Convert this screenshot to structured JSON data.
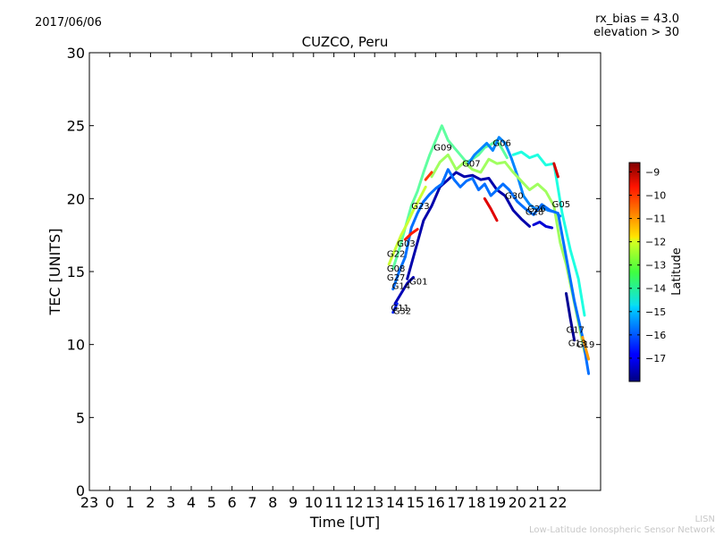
{
  "date_label": "2017/06/06",
  "rx_bias_label": "rx_bias = 43.0",
  "elevation_label": "elevation > 30",
  "credit_line1": "LISN",
  "credit_line2": "Low-Latitude Ionospheric Sensor Network",
  "chart_data": {
    "type": "line",
    "title": "CUZCO, Peru",
    "xlabel": "Time [UT]",
    "ylabel": "TEC [UNITS]",
    "ylim": [
      0,
      30
    ],
    "yticks": [
      "0",
      "5",
      "10",
      "15",
      "20",
      "25",
      "30"
    ],
    "xticks": [
      "23",
      "0",
      "1",
      "2",
      "3",
      "4",
      "5",
      "6",
      "7",
      "8",
      "9",
      "10",
      "11",
      "12",
      "13",
      "14",
      "15",
      "16",
      "17",
      "18",
      "19",
      "20",
      "21",
      "22"
    ],
    "colorbar": {
      "label": "Latitude",
      "range": [
        -18,
        -8.6
      ],
      "ticks": [
        "−9",
        "−10",
        "−11",
        "−12",
        "−13",
        "−14",
        "−15",
        "−16",
        "−17"
      ],
      "tick_values": [
        -9,
        -10,
        -11,
        -12,
        -13,
        -14,
        -15,
        -16,
        -17
      ]
    },
    "series": [
      {
        "name": "G09",
        "lat": -13.6,
        "x": [
          13.9,
          14.2,
          14.5,
          14.8,
          15.1,
          15.4,
          15.7,
          16.0,
          16.3,
          16.6,
          16.9,
          17.2,
          17.5,
          17.8,
          18.1,
          18.4,
          18.7,
          19.0,
          19.3,
          19.5
        ],
        "y": [
          15.2,
          16.5,
          18.0,
          19.5,
          20.5,
          21.8,
          23.0,
          24.0,
          25.0,
          24.0,
          23.5,
          23.0,
          22.5,
          22.7,
          23.0,
          23.5,
          23.7,
          24.0,
          23.3,
          22.8
        ]
      },
      {
        "name": "G06",
        "lat": -15.6,
        "x": [
          17.6,
          17.9,
          18.2,
          18.5,
          18.8,
          19.1,
          19.4,
          19.7,
          20.0,
          20.3,
          20.6,
          20.9,
          21.2,
          21.5,
          21.8,
          22.1
        ],
        "y": [
          22.4,
          23.0,
          23.4,
          23.8,
          23.3,
          24.2,
          23.8,
          22.8,
          21.6,
          20.2,
          19.6,
          19.3,
          19.4,
          19.2,
          19.1,
          18.8
        ]
      },
      {
        "name": "G07",
        "lat": -13.0,
        "x": [
          15.8,
          16.2,
          16.6,
          17.0,
          17.4,
          17.8,
          18.2,
          18.6,
          19.0,
          19.4,
          19.8,
          20.2,
          20.6,
          21.0,
          21.4,
          21.8,
          22.1,
          22.4,
          22.7,
          23.0,
          23.3
        ],
        "y": [
          21.5,
          22.5,
          23.0,
          22.0,
          22.5,
          22.0,
          21.8,
          22.7,
          22.4,
          22.5,
          21.8,
          21.2,
          20.6,
          21.0,
          20.5,
          19.5,
          17.0,
          15.5,
          13.5,
          11.5,
          9.5
        ]
      },
      {
        "name": "G30",
        "lat": -17.6,
        "x": [
          14.6,
          15.0,
          15.4,
          15.8,
          16.2,
          16.6,
          17.0,
          17.4,
          17.8,
          18.2,
          18.6,
          19.0,
          19.4,
          19.8,
          20.2,
          20.6
        ],
        "y": [
          14.5,
          16.5,
          18.5,
          19.5,
          20.8,
          21.3,
          21.8,
          21.5,
          21.6,
          21.3,
          21.4,
          20.6,
          20.2,
          19.2,
          18.6,
          18.1
        ]
      },
      {
        "name": "G28",
        "lat": -17.2,
        "x": [
          20.8,
          21.1,
          21.4,
          21.7
        ],
        "y": [
          18.2,
          18.4,
          18.1,
          18.0
        ]
      },
      {
        "name": "G05",
        "lat": -14.2,
        "x": [
          19.8,
          20.2,
          20.6,
          21.0,
          21.4,
          21.8,
          22.2,
          22.6,
          23.0,
          23.3
        ],
        "y": [
          23.0,
          23.2,
          22.8,
          23.0,
          22.3,
          22.4,
          19.0,
          16.5,
          14.5,
          12.0
        ]
      },
      {
        "name": "G05b",
        "lat": -9.4,
        "x": [
          21.8,
          22.0
        ],
        "y": [
          22.4,
          21.5
        ]
      },
      {
        "name": "G23",
        "lat": -15.8,
        "x": [
          13.9,
          14.2,
          14.5,
          14.8,
          15.1,
          15.4,
          15.7,
          16.0,
          16.3,
          16.6,
          16.9,
          17.2,
          17.5,
          17.8,
          18.1,
          18.4,
          18.7,
          19.0,
          19.3,
          19.6,
          20.0,
          20.4,
          20.8,
          21.2,
          21.6,
          22.0,
          22.4,
          22.8,
          23.2,
          23.5
        ],
        "y": [
          13.8,
          15.0,
          16.0,
          18.0,
          19.0,
          19.8,
          20.3,
          20.7,
          21.0,
          22.0,
          21.3,
          20.8,
          21.2,
          21.4,
          20.6,
          21.0,
          20.2,
          20.6,
          21.0,
          20.6,
          19.8,
          19.3,
          18.9,
          19.6,
          19.2,
          19.0,
          16.0,
          13.0,
          10.5,
          8.0
        ]
      },
      {
        "name": "G22",
        "lat": -12.6,
        "x": [
          13.7,
          14.0,
          14.3,
          14.6,
          14.9,
          15.2,
          15.5
        ],
        "y": [
          15.5,
          16.5,
          17.5,
          18.3,
          19.2,
          20.0,
          20.8
        ]
      },
      {
        "name": "G03",
        "lat": -10.0,
        "x": [
          14.5,
          14.8,
          15.1
        ],
        "y": [
          17.2,
          17.6,
          17.9
        ]
      },
      {
        "name": "G03b",
        "lat": -10.3,
        "x": [
          15.5,
          15.8
        ],
        "y": [
          21.3,
          21.8
        ]
      },
      {
        "name": "G26",
        "lat": -9.5,
        "x": [
          18.4,
          18.7,
          19.0
        ],
        "y": [
          20.0,
          19.3,
          18.5
        ]
      },
      {
        "name": "G01",
        "lat": -17.5,
        "x": [
          14.0,
          14.3,
          14.6,
          14.9
        ],
        "y": [
          12.8,
          13.5,
          14.2,
          14.6
        ]
      },
      {
        "name": "G11",
        "lat": -16.5,
        "x": [
          13.9,
          14.1
        ],
        "y": [
          12.2,
          12.8
        ]
      },
      {
        "name": "G17",
        "lat": -17.8,
        "x": [
          22.4,
          22.6,
          22.8
        ],
        "y": [
          13.5,
          11.8,
          10.3
        ]
      },
      {
        "name": "G19",
        "lat": -11.2,
        "x": [
          23.2,
          23.5
        ],
        "y": [
          10.5,
          9.0
        ]
      }
    ],
    "labels": [
      {
        "text": "G09",
        "x": 15.9,
        "y": 23.3
      },
      {
        "text": "G06",
        "x": 18.8,
        "y": 23.6
      },
      {
        "text": "G07",
        "x": 17.3,
        "y": 22.2
      },
      {
        "text": "G30",
        "x": 19.4,
        "y": 20.0
      },
      {
        "text": "G28",
        "x": 20.4,
        "y": 18.9
      },
      {
        "text": "G26",
        "x": 20.5,
        "y": 19.1
      },
      {
        "text": "G05",
        "x": 21.7,
        "y": 19.4
      },
      {
        "text": "G23",
        "x": 14.8,
        "y": 19.3
      },
      {
        "text": "G03",
        "x": 14.1,
        "y": 16.7
      },
      {
        "text": "G22",
        "x": 13.6,
        "y": 16.0
      },
      {
        "text": "G08",
        "x": 13.6,
        "y": 15.0
      },
      {
        "text": "G27",
        "x": 13.6,
        "y": 14.4
      },
      {
        "text": "G14",
        "x": 13.85,
        "y": 13.8
      },
      {
        "text": "G01",
        "x": 14.7,
        "y": 14.1
      },
      {
        "text": "G11",
        "x": 13.8,
        "y": 12.3
      },
      {
        "text": "G32",
        "x": 13.9,
        "y": 12.1
      },
      {
        "text": "G17",
        "x": 22.4,
        "y": 10.8
      },
      {
        "text": "G13",
        "x": 22.5,
        "y": 9.9
      },
      {
        "text": "G19",
        "x": 22.9,
        "y": 9.8
      }
    ]
  }
}
